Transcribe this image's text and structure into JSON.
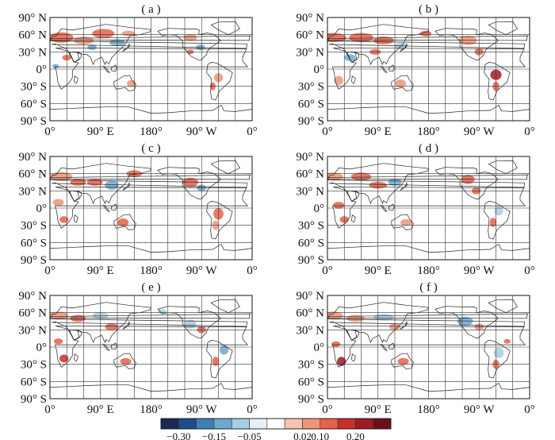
{
  "chart_data": {
    "type": "heatmap",
    "panels": [
      {
        "label": "( a )",
        "anomaly_regions": []
      },
      {
        "label": "( b )",
        "anomaly_regions": []
      },
      {
        "label": "( c )",
        "anomaly_regions": []
      },
      {
        "label": "( d )",
        "anomaly_regions": []
      },
      {
        "label": "( e )",
        "anomaly_regions": []
      },
      {
        "label": "( f )",
        "anomaly_regions": []
      }
    ],
    "y_tick_labels": [
      "90° N",
      "60° N",
      "30° N",
      "0°",
      "30° S",
      "60° S",
      "90° S"
    ],
    "x_tick_labels": [
      "0°",
      "90° E",
      "180°",
      "90° W",
      "0°"
    ],
    "y_range": [
      -90,
      90
    ],
    "x_range": [
      0,
      360
    ],
    "grid": true,
    "colorbar": {
      "tick_labels": [
        "-0.30",
        "-0.15",
        "-0.05",
        "0.02",
        "0.10",
        "0.20"
      ],
      "colors": [
        "#1a2a55",
        "#1f4d8a",
        "#3f7fb8",
        "#6fa8cf",
        "#a8cde3",
        "#e6f1f7",
        "#ffffff",
        "#f6c3b2",
        "#ef9478",
        "#e4624a",
        "#c72f2a",
        "#9e1c24",
        "#6d0f1a"
      ]
    }
  }
}
